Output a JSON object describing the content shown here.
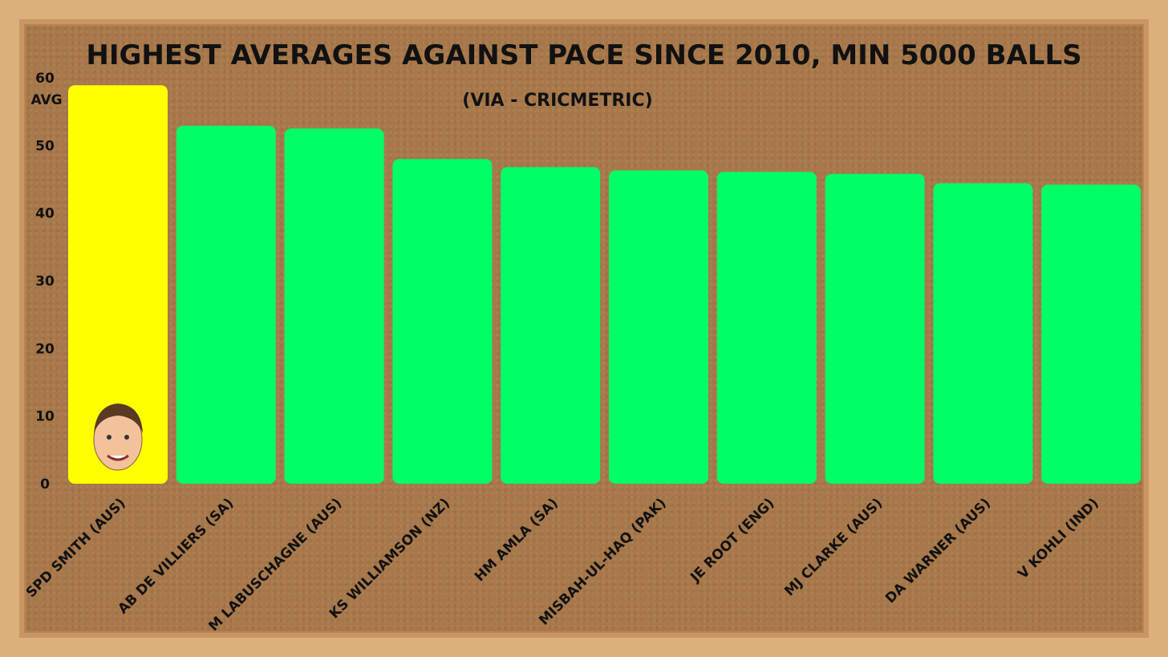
{
  "chart_data": {
    "type": "bar",
    "title": "HIGHEST AVERAGES AGAINST PACE SINCE 2010, MIN 5000 BALLS",
    "subtitle": "(VIA - CRICMETRIC)",
    "ylabel": "AVG",
    "ylim": [
      0,
      60
    ],
    "yticks": [
      0,
      10,
      20,
      30,
      40,
      50,
      60
    ],
    "grid": false,
    "categories": [
      "SPD SMITH (AUS)",
      "AB DE VILLIERS (SA)",
      "M LABUSCHAGNE (AUS)",
      "KS WILLIAMSON (NZ)",
      "HM AMLA (SA)",
      "MISBAH-UL-HAQ (PAK)",
      "JE ROOT (ENG)",
      "MJ CLARKE (AUS)",
      "DA WARNER (AUS)",
      "V KOHLI (IND)"
    ],
    "values": [
      58.9,
      52.9,
      52.5,
      48.0,
      46.8,
      46.3,
      46.1,
      45.8,
      44.4,
      44.2
    ],
    "colors": {
      "highlight": "#ffff00",
      "default": "#00ff66"
    },
    "highlight_index": 0
  }
}
